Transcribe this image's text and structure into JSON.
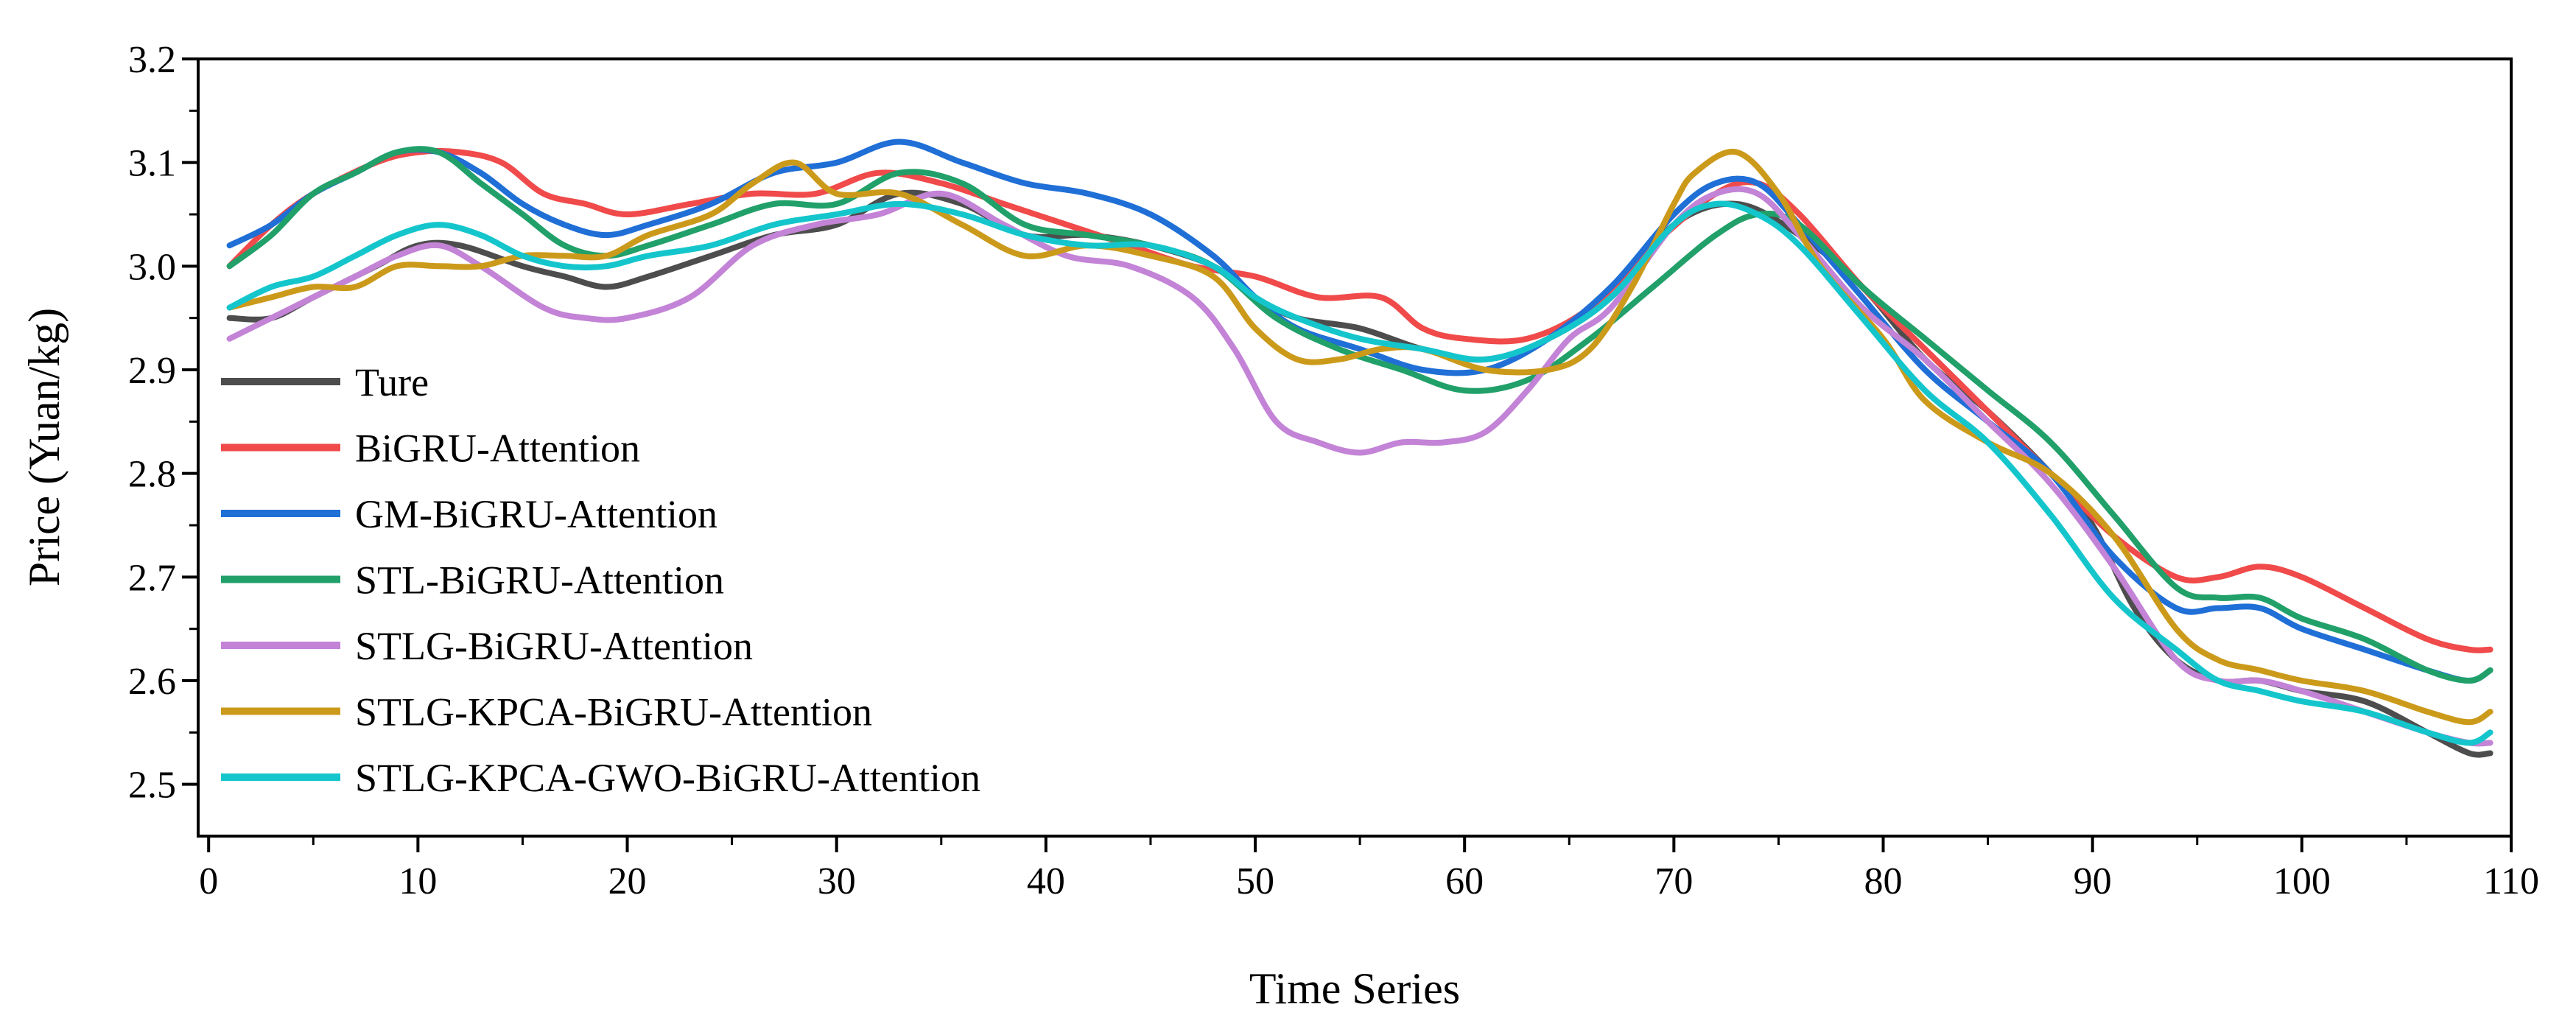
{
  "chart_data": {
    "type": "line",
    "title": "",
    "xlabel": "Time Series",
    "ylabel": "Price (Yuan/kg)",
    "xlim": [
      -0.5,
      110
    ],
    "ylim": [
      2.45,
      3.2
    ],
    "xticks": [
      0,
      10,
      20,
      30,
      40,
      50,
      60,
      70,
      80,
      90,
      100,
      110
    ],
    "yticks": [
      2.5,
      2.6,
      2.7,
      2.8,
      2.9,
      3.0,
      3.1,
      3.2
    ],
    "xtick_labels": [
      "0",
      "10",
      "20",
      "30",
      "40",
      "50",
      "60",
      "70",
      "80",
      "90",
      "100",
      "110"
    ],
    "ytick_labels": [
      "2.5",
      "2.6",
      "2.7",
      "2.8",
      "2.9",
      "3.0",
      "3.1",
      "3.2"
    ],
    "grid": false,
    "legend_position": "left",
    "series": [
      {
        "name": "Ture",
        "color": "#4d4d4d",
        "x": [
          1,
          3,
          5,
          8,
          10,
          12,
          15,
          17,
          19,
          21,
          24,
          27,
          30,
          33,
          36,
          39,
          42,
          45,
          48,
          50,
          52,
          55,
          58,
          61,
          64,
          67,
          70,
          73,
          76,
          79,
          82,
          85,
          88,
          90,
          92,
          94,
          96,
          98,
          100,
          103,
          106,
          108,
          109
        ],
        "values": [
          2.95,
          2.95,
          2.97,
          3.0,
          3.02,
          3.02,
          3.0,
          2.99,
          2.98,
          2.99,
          3.01,
          3.03,
          3.04,
          3.07,
          3.06,
          3.03,
          3.03,
          3.02,
          3.0,
          2.97,
          2.95,
          2.94,
          2.92,
          2.91,
          2.93,
          2.97,
          3.04,
          3.06,
          3.03,
          2.98,
          2.91,
          2.86,
          2.8,
          2.75,
          2.67,
          2.62,
          2.6,
          2.6,
          2.59,
          2.58,
          2.55,
          2.53,
          2.53
        ]
      },
      {
        "name": "BiGRU-Attention",
        "color": "#f04a4a",
        "x": [
          1,
          3,
          5,
          8,
          10,
          12,
          14,
          16,
          18,
          20,
          23,
          26,
          29,
          32,
          35,
          38,
          41,
          44,
          47,
          50,
          53,
          56,
          58,
          60,
          63,
          66,
          69,
          72,
          74,
          76,
          79,
          82,
          85,
          88,
          91,
          94,
          96,
          98,
          100,
          103,
          106,
          108,
          109
        ],
        "values": [
          3.0,
          3.04,
          3.07,
          3.1,
          3.11,
          3.11,
          3.1,
          3.07,
          3.06,
          3.05,
          3.06,
          3.07,
          3.07,
          3.09,
          3.08,
          3.06,
          3.04,
          3.02,
          3.0,
          2.99,
          2.97,
          2.97,
          2.94,
          2.93,
          2.93,
          2.96,
          3.02,
          3.07,
          3.08,
          3.05,
          2.98,
          2.92,
          2.86,
          2.8,
          2.74,
          2.7,
          2.7,
          2.71,
          2.7,
          2.67,
          2.64,
          2.63,
          2.63
        ]
      },
      {
        "name": "GM-BiGRU-Attention",
        "color": "#1f6fd6",
        "x": [
          1,
          3,
          5,
          7,
          9,
          11,
          13,
          15,
          17,
          19,
          21,
          24,
          27,
          30,
          33,
          36,
          39,
          42,
          45,
          48,
          50,
          52,
          55,
          58,
          61,
          64,
          67,
          70,
          72,
          74,
          76,
          79,
          82,
          85,
          88,
          91,
          94,
          96,
          98,
          100,
          103,
          106,
          108,
          109
        ],
        "values": [
          3.02,
          3.04,
          3.07,
          3.09,
          3.11,
          3.11,
          3.09,
          3.06,
          3.04,
          3.03,
          3.04,
          3.06,
          3.09,
          3.1,
          3.12,
          3.1,
          3.08,
          3.07,
          3.05,
          3.01,
          2.97,
          2.94,
          2.92,
          2.9,
          2.9,
          2.93,
          2.98,
          3.05,
          3.08,
          3.08,
          3.04,
          2.97,
          2.9,
          2.85,
          2.8,
          2.72,
          2.67,
          2.67,
          2.67,
          2.65,
          2.63,
          2.61,
          2.6,
          2.61
        ]
      },
      {
        "name": "STL-BiGRU-Attention",
        "color": "#21a06a",
        "x": [
          1,
          3,
          5,
          7,
          9,
          11,
          13,
          15,
          17,
          19,
          21,
          24,
          27,
          30,
          33,
          36,
          39,
          42,
          45,
          48,
          51,
          54,
          57,
          60,
          63,
          66,
          69,
          72,
          74,
          76,
          79,
          82,
          85,
          88,
          91,
          94,
          96,
          98,
          100,
          103,
          106,
          108,
          109
        ],
        "values": [
          3.0,
          3.03,
          3.07,
          3.09,
          3.11,
          3.11,
          3.08,
          3.05,
          3.02,
          3.01,
          3.02,
          3.04,
          3.06,
          3.06,
          3.09,
          3.08,
          3.04,
          3.03,
          3.02,
          3.0,
          2.95,
          2.92,
          2.9,
          2.88,
          2.89,
          2.93,
          2.98,
          3.03,
          3.05,
          3.04,
          2.98,
          2.93,
          2.88,
          2.83,
          2.76,
          2.69,
          2.68,
          2.68,
          2.66,
          2.64,
          2.61,
          2.6,
          2.61
        ]
      },
      {
        "name": "STLG-BiGRU-Attention",
        "color": "#c383d6",
        "x": [
          1,
          3,
          5,
          7,
          9,
          11,
          13,
          16,
          18,
          20,
          23,
          26,
          29,
          32,
          35,
          38,
          41,
          44,
          47,
          49,
          51,
          53,
          55,
          57,
          59,
          61,
          63,
          65,
          67,
          70,
          72,
          74,
          76,
          79,
          82,
          85,
          88,
          91,
          94,
          96,
          98,
          100,
          103,
          106,
          108,
          109
        ],
        "values": [
          2.93,
          2.95,
          2.97,
          2.99,
          3.01,
          3.02,
          3.0,
          2.96,
          2.95,
          2.95,
          2.97,
          3.02,
          3.04,
          3.05,
          3.07,
          3.04,
          3.01,
          3.0,
          2.97,
          2.92,
          2.85,
          2.83,
          2.82,
          2.83,
          2.83,
          2.84,
          2.88,
          2.93,
          2.96,
          3.04,
          3.07,
          3.07,
          3.03,
          2.96,
          2.91,
          2.85,
          2.79,
          2.71,
          2.62,
          2.6,
          2.6,
          2.59,
          2.57,
          2.55,
          2.54,
          2.54
        ]
      },
      {
        "name": "STLG-KPCA-BiGRU-Attention",
        "color": "#cc9a1a",
        "x": [
          1,
          3,
          5,
          7,
          9,
          11,
          13,
          15,
          17,
          19,
          21,
          24,
          26,
          28,
          30,
          33,
          36,
          39,
          42,
          45,
          48,
          50,
          52,
          54,
          56,
          58,
          61,
          64,
          66,
          68,
          70,
          71,
          73,
          75,
          77,
          80,
          82,
          85,
          88,
          91,
          94,
          96,
          98,
          100,
          103,
          106,
          108,
          109
        ],
        "values": [
          2.96,
          2.97,
          2.98,
          2.98,
          3.0,
          3.0,
          3.0,
          3.01,
          3.01,
          3.01,
          3.03,
          3.05,
          3.08,
          3.1,
          3.07,
          3.07,
          3.04,
          3.01,
          3.02,
          3.01,
          2.99,
          2.94,
          2.91,
          2.91,
          2.92,
          2.92,
          2.9,
          2.9,
          2.92,
          2.98,
          3.06,
          3.09,
          3.11,
          3.07,
          3.0,
          2.93,
          2.87,
          2.83,
          2.8,
          2.74,
          2.65,
          2.62,
          2.61,
          2.6,
          2.59,
          2.57,
          2.56,
          2.57
        ]
      },
      {
        "name": "STLG-KPCA-GWO-BiGRU-Attention",
        "color": "#14c6cc",
        "x": [
          1,
          3,
          5,
          7,
          9,
          11,
          13,
          15,
          17,
          19,
          21,
          24,
          27,
          30,
          33,
          36,
          39,
          42,
          45,
          48,
          50,
          52,
          55,
          58,
          61,
          64,
          67,
          70,
          72,
          74,
          76,
          79,
          82,
          85,
          88,
          91,
          94,
          96,
          98,
          100,
          103,
          106,
          108,
          109
        ],
        "values": [
          2.96,
          2.98,
          2.99,
          3.01,
          3.03,
          3.04,
          3.03,
          3.01,
          3.0,
          3.0,
          3.01,
          3.02,
          3.04,
          3.05,
          3.06,
          3.05,
          3.03,
          3.02,
          3.02,
          3.0,
          2.97,
          2.95,
          2.93,
          2.92,
          2.91,
          2.93,
          2.97,
          3.04,
          3.06,
          3.05,
          3.02,
          2.95,
          2.88,
          2.83,
          2.76,
          2.68,
          2.63,
          2.6,
          2.59,
          2.58,
          2.57,
          2.55,
          2.54,
          2.55
        ]
      }
    ]
  }
}
